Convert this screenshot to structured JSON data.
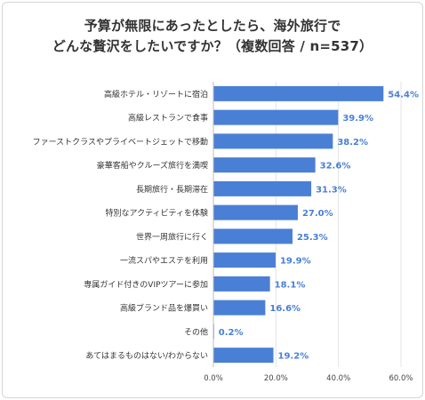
{
  "chart_data": {
    "type": "bar",
    "orientation": "horizontal",
    "title_lines": [
      "予算が無限にあったとしたら、海外旅行で",
      "どんな贅沢をしたいですか？（複数回答 / n=537）"
    ],
    "categories": [
      "高級ホテル・リゾートに宿泊",
      "高級レストランで食事",
      "ファーストクラスやプライベートジェットで移動",
      "豪華客船やクルーズ旅行を満喫",
      "長期旅行・長期滞在",
      "特別なアクティビティを体験",
      "世界一周旅行に行く",
      "一流スパやエステを利用",
      "専属ガイド付きのVIPツアーに参加",
      "高級ブランド品を爆買い",
      "その他",
      "あてはまるものはない/わからない"
    ],
    "values": [
      54.4,
      39.9,
      38.2,
      32.6,
      31.3,
      27.0,
      25.3,
      19.9,
      18.1,
      16.6,
      0.2,
      19.2
    ],
    "value_labels": [
      "54.4%",
      "39.9%",
      "38.2%",
      "32.6%",
      "31.3%",
      "27.0%",
      "25.3%",
      "19.9%",
      "18.1%",
      "16.6%",
      "0.2%",
      "19.2%"
    ],
    "xlim": [
      0,
      60
    ],
    "ticks": [
      0,
      20,
      40,
      60
    ],
    "tick_labels": [
      "0.0%",
      "20.0%",
      "40.0%",
      "60.0%"
    ],
    "grid": true,
    "legend": "none",
    "colors": {
      "bar": "#4a7fd6",
      "value_label": "#4a7fd6",
      "grid": "#e3e3e3",
      "text": "#333333"
    }
  }
}
